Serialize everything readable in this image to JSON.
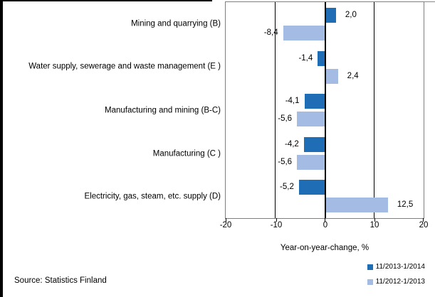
{
  "chart_data": {
    "type": "bar",
    "orientation": "horizontal",
    "title": "",
    "categories": [
      "Mining and quarrying (B)",
      "Water supply, sewerage and waste management (E )",
      "Manufacturing and mining (B-C)",
      "Manufacturing (C )",
      "Electricity, gas, steam, etc. supply  (D)"
    ],
    "series": [
      {
        "name": "11/2013-1/2014",
        "color": "#1f6db4",
        "values": [
          2.0,
          -1.4,
          -4.1,
          -4.2,
          -5.2
        ],
        "value_labels": [
          "2,0",
          "-1,4",
          "-4,1",
          "-4,2",
          "-5,2"
        ]
      },
      {
        "name": "11/2012-1/2013",
        "color": "#a4bce4",
        "values": [
          -8.4,
          2.4,
          -5.6,
          -5.6,
          12.5
        ],
        "value_labels": [
          "-8,4",
          "2,4",
          "-5,6",
          "-5,6",
          "12,5"
        ]
      }
    ],
    "xlabel": "Year-on-year-change, %",
    "xlim": [
      -20,
      20
    ],
    "xticks": [
      "-20",
      "-10",
      "0",
      "10",
      "20"
    ],
    "grid": "vertical gridlines at -10, 0, 10; boxed plot area",
    "legend_position": "bottom-right",
    "decimal_separator": ","
  },
  "source": {
    "text": "Source: Statistics Finland"
  },
  "colors": {
    "series_dark": "#1f6db4",
    "series_light": "#a4bce4",
    "plot_border": "#7f7f7f",
    "gridline": "#000000",
    "text": "#000000",
    "background": "#ffffff"
  }
}
